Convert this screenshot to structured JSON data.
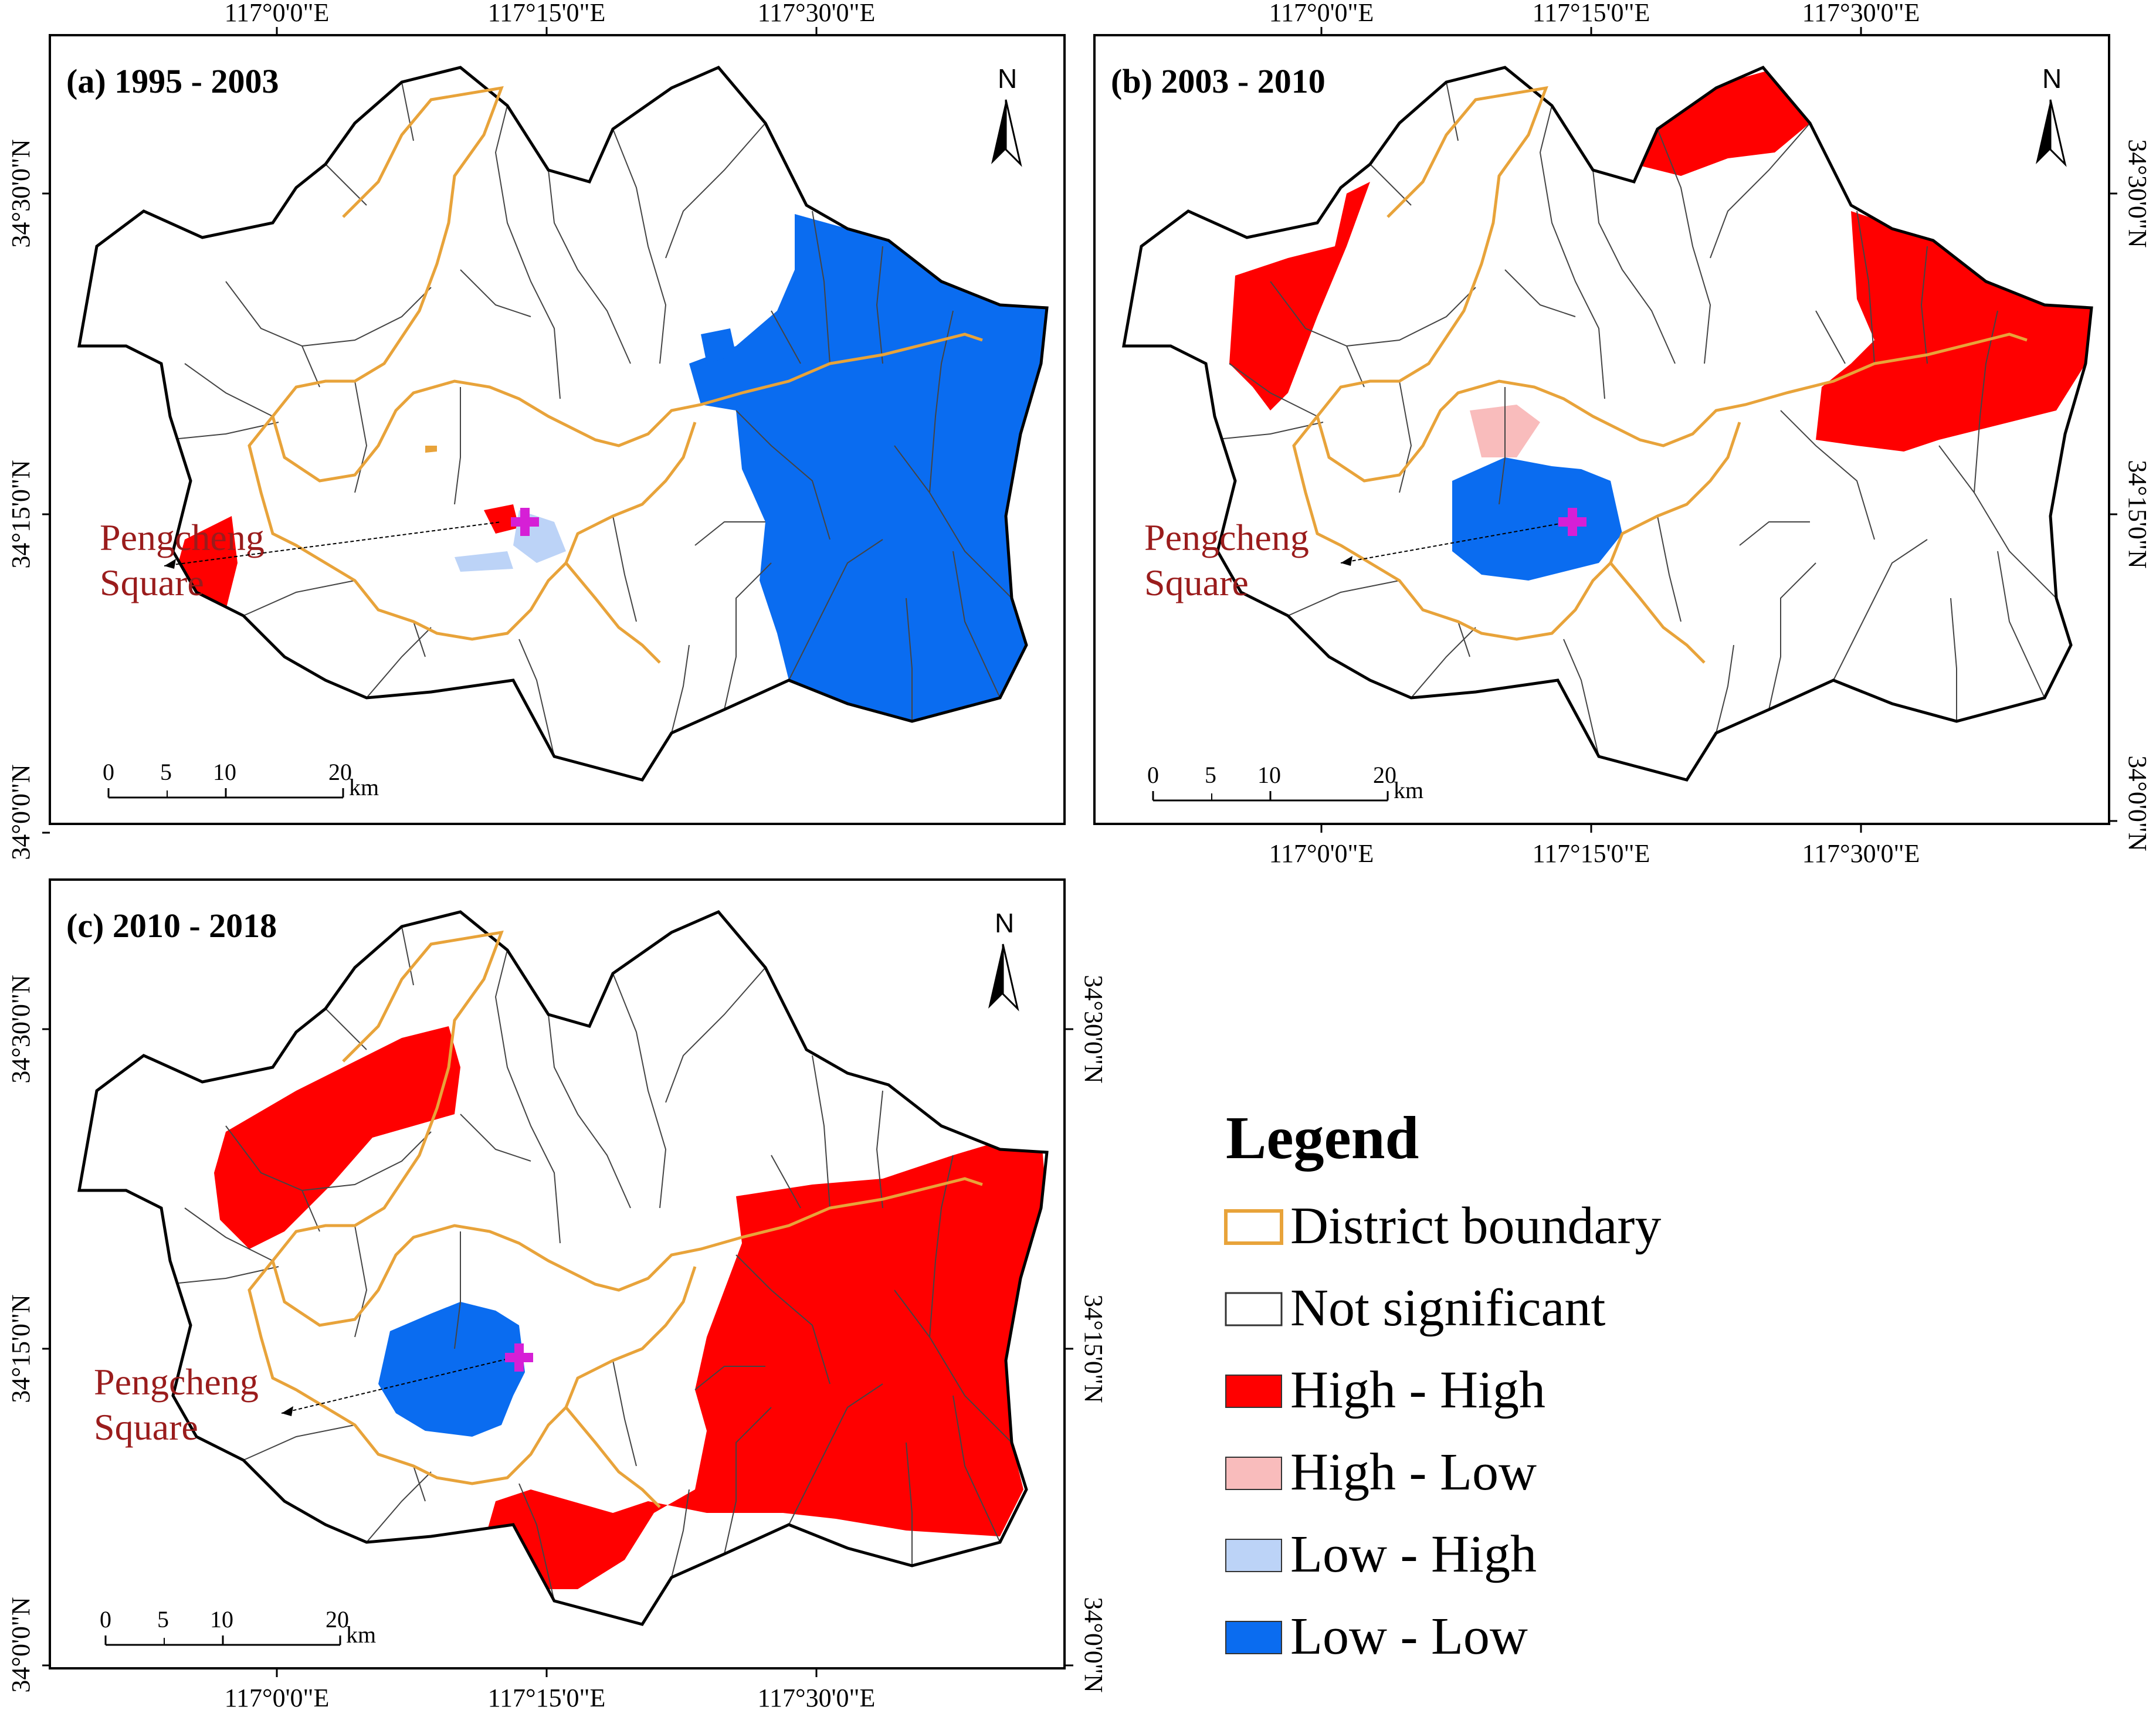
{
  "panels": [
    {
      "title": "(a) 1995 - 2003",
      "annotation": [
        "Pengcheng",
        "Square"
      ],
      "lon_ticks_top": [
        "117°0'0\"E",
        "117°15'0\"E",
        "117°30'0\"E"
      ],
      "lon_ticks_bottom": [],
      "lat_ticks_left": [
        "34°30'0\"N",
        "34°15'0\"N",
        "34°0'0\"N"
      ],
      "lat_ticks_right": []
    },
    {
      "title": "(b) 2003 - 2010",
      "annotation": [
        "Pengcheng",
        "Square"
      ],
      "lon_ticks_top": [
        "117°0'0\"E",
        "117°15'0\"E",
        "117°30'0\"E"
      ],
      "lon_ticks_bottom": [
        "117°0'0\"E",
        "117°15'0\"E",
        "117°30'0\"E"
      ],
      "lat_ticks_left": [],
      "lat_ticks_right": [
        "34°30'0\"N",
        "34°15'0\"N",
        "34°0'0\"N"
      ]
    },
    {
      "title": "(c) 2010 - 2018",
      "annotation": [
        "Pengcheng",
        "Square"
      ],
      "lon_ticks_top": [],
      "lon_ticks_bottom": [
        "117°0'0\"E",
        "117°15'0\"E",
        "117°30'0\"E"
      ],
      "lat_ticks_left": [
        "34°30'0\"N",
        "34°15'0\"N",
        "34°0'0\"N"
      ],
      "lat_ticks_right": [
        "34°30'0\"N",
        "34°15'0\"N",
        "34°0'0\"N"
      ]
    }
  ],
  "north_label": "N",
  "scale_bar": {
    "labels": [
      "0",
      "5",
      "10",
      "20"
    ],
    "unit": "km"
  },
  "legend": {
    "title": "Legend",
    "items": [
      {
        "label": "District boundary",
        "fill": "#ffffff",
        "stroke": "#e8a33a"
      },
      {
        "label": "Not significant",
        "fill": "#ffffff",
        "stroke": "#333333"
      },
      {
        "label": "High - High",
        "fill": "#ff0000",
        "stroke": "#333333"
      },
      {
        "label": "High - Low",
        "fill": "#f9bcbc",
        "stroke": "#333333"
      },
      {
        "label": "Low - High",
        "fill": "#bcd3f7",
        "stroke": "#333333"
      },
      {
        "label": "Low - Low",
        "fill": "#0a6cf0",
        "stroke": "#333333"
      }
    ]
  },
  "colors": {
    "high_high": "#ff0000",
    "high_low": "#f9bcbc",
    "low_high": "#bcd3f7",
    "low_low": "#0a6cf0",
    "district_boundary": "#e8a33a",
    "marker": "#d61fd6",
    "annotation_text": "#9a1c1c"
  }
}
